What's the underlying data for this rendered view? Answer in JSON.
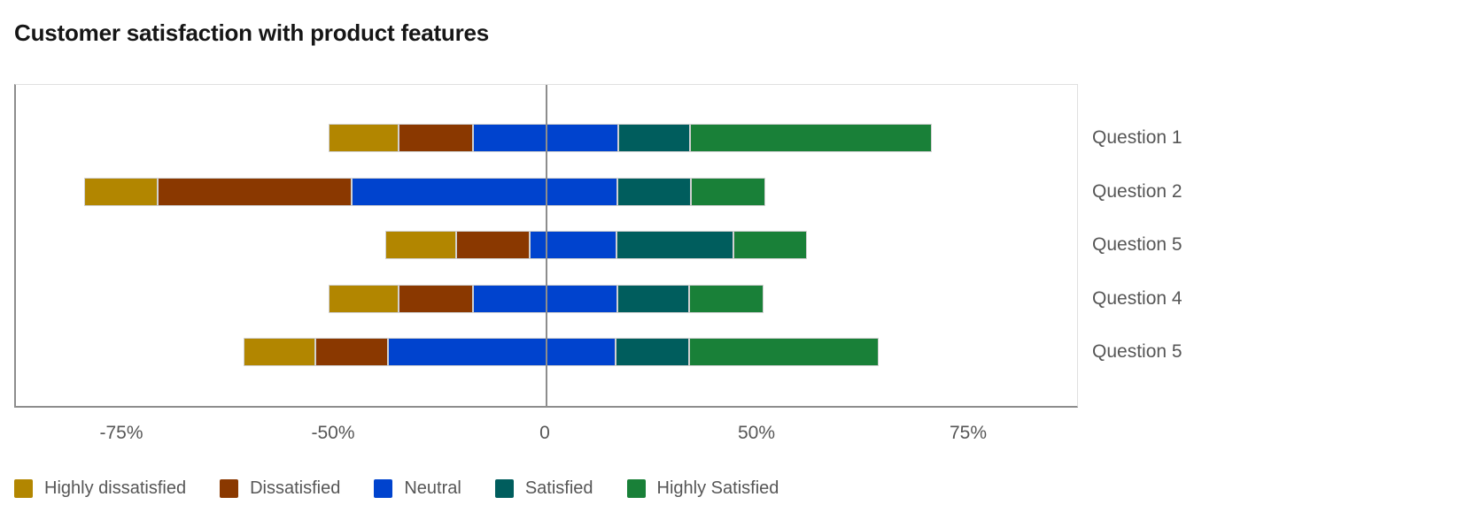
{
  "header": {
    "title": "Customer satisfaction with product features"
  },
  "chart_data": {
    "type": "bar",
    "variant": "diverging_stacked_horizontal_likert",
    "title": "Customer satisfaction with product features",
    "orientation": "horizontal",
    "categories": [
      "Question 1",
      "Question 2",
      "Question 5",
      "Question 4",
      "Question 5"
    ],
    "series": [
      {
        "name": "Highly dissatisfied",
        "color": "#b28600",
        "values": [
          16.6,
          17.4,
          16.8,
          16.6,
          17.1
        ]
      },
      {
        "name": "Dissatisfied",
        "color": "#8a3800",
        "values": [
          17.5,
          45.9,
          17.5,
          17.5,
          17.2
        ]
      },
      {
        "name": "Neutral",
        "color": "#0043ce",
        "values": [
          34.5,
          63.2,
          20.6,
          34.3,
          54.0
        ]
      },
      {
        "name": "Satisfied",
        "color": "#005d5d",
        "values": [
          17.0,
          17.4,
          27.7,
          17.0,
          17.5
        ]
      },
      {
        "name": "Highly Satisfied",
        "color": "#198038",
        "values": [
          57.5,
          17.7,
          17.4,
          17.6,
          45.0
        ]
      }
    ],
    "bar_start_values": [
      -51.3,
      -109.3,
      -37.9,
      -51.3,
      -71.6
    ],
    "x_axis": {
      "unit": "%",
      "tick_labels": [
        "-75%",
        "-50%",
        "0",
        "50%",
        "75%"
      ],
      "tick_values": [
        -75,
        -50,
        0,
        50,
        75
      ],
      "tick_spacing": "even",
      "zero_reference_line": true
    },
    "grid": false,
    "legend_position": "bottom",
    "category_labels_position": "right"
  },
  "colors": {
    "title_text": "#161616",
    "label_text": "#565656",
    "axis_line": "#8d8d8d",
    "plot_border": "#e0e0e0",
    "zero_line": "#8d8d8d",
    "segment_outline": "#d0d0d0"
  }
}
